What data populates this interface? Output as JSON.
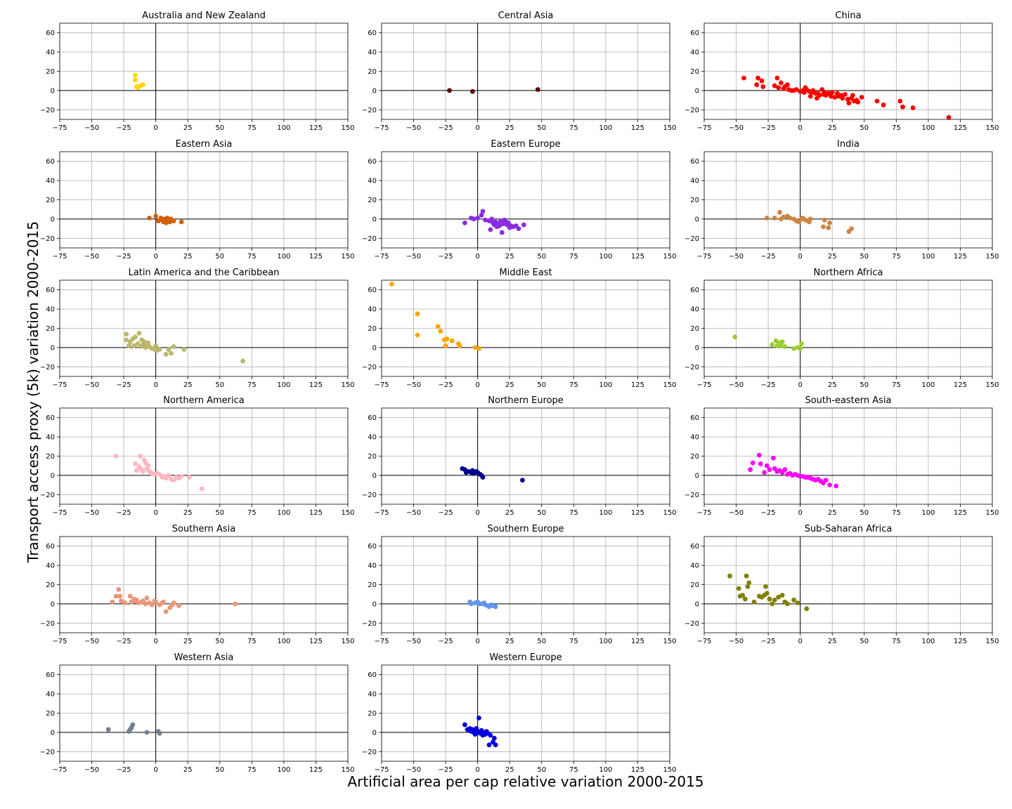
{
  "figure": {
    "xlabel": "Artificial area per cap relative variation 2000-2015",
    "ylabel": "Transport access proxy (5k) variation 2000-2015"
  },
  "chart_data": [
    {
      "type": "scatter",
      "title": "Australia and New Zealand",
      "color": "#ffd700",
      "xlim": [
        -75,
        150
      ],
      "ylim": [
        -30,
        70
      ],
      "xticks": [
        -75,
        -50,
        -25,
        0,
        25,
        50,
        75,
        100,
        125,
        150
      ],
      "yticks": [
        -20,
        0,
        20,
        40,
        60
      ],
      "grid": true,
      "x": [
        -16,
        -16,
        -15,
        -14,
        -12,
        -10
      ],
      "y": [
        16,
        11,
        4,
        3,
        5,
        6
      ]
    },
    {
      "type": "scatter",
      "title": "Central Asia",
      "color": "#5c0000",
      "xlim": [
        -75,
        150
      ],
      "ylim": [
        -30,
        70
      ],
      "xticks": [
        -75,
        -50,
        -25,
        0,
        25,
        50,
        75,
        100,
        125,
        150
      ],
      "yticks": [
        -20,
        0,
        20,
        40,
        60
      ],
      "grid": true,
      "x": [
        -22,
        -4,
        47
      ],
      "y": [
        0,
        -1,
        1
      ]
    },
    {
      "type": "scatter",
      "title": "China",
      "color": "#ff0000",
      "xlim": [
        -75,
        150
      ],
      "ylim": [
        -30,
        70
      ],
      "xticks": [
        -75,
        -50,
        -25,
        0,
        25,
        50,
        75,
        100,
        125,
        150
      ],
      "yticks": [
        -20,
        0,
        20,
        40,
        60
      ],
      "grid": true,
      "x": [
        -44,
        -33,
        -34,
        -30,
        -29,
        -20,
        -18,
        -15,
        -13,
        -10,
        -9,
        -5,
        -3,
        0,
        2,
        4,
        5,
        7,
        9,
        10,
        12,
        13,
        15,
        17,
        18,
        20,
        22,
        25,
        27,
        30,
        32,
        35,
        38,
        40,
        42,
        45,
        48,
        60,
        65,
        78,
        80,
        88,
        116,
        -17,
        -12,
        -7,
        3,
        8,
        14,
        19,
        24,
        29,
        33,
        37,
        41,
        44
      ],
      "y": [
        13,
        13,
        6,
        10,
        4,
        5,
        13,
        8,
        2,
        6,
        1,
        0,
        1,
        -1,
        0,
        3,
        1,
        -1,
        -2,
        0,
        -3,
        -8,
        -5,
        1,
        -4,
        -5,
        -3,
        -2,
        -7,
        -6,
        -5,
        -4,
        -13,
        -8,
        -11,
        -12,
        -7,
        -11,
        -15,
        -11,
        -17,
        -18,
        -28,
        3,
        4,
        0,
        -2,
        -6,
        -3,
        -2,
        -6,
        -3,
        -8,
        -9,
        -5,
        -10
      ]
    },
    {
      "type": "scatter",
      "title": "Eastern Asia",
      "color": "#d2600a",
      "xlim": [
        -75,
        150
      ],
      "ylim": [
        -30,
        70
      ],
      "xticks": [
        -75,
        -50,
        -25,
        0,
        25,
        50,
        75,
        100,
        125,
        150
      ],
      "yticks": [
        -20,
        0,
        20,
        40,
        60
      ],
      "grid": true,
      "x": [
        -5,
        0,
        2,
        4,
        5,
        6,
        7,
        8,
        9,
        10,
        11,
        12,
        14,
        20
      ],
      "y": [
        1,
        3,
        -2,
        1,
        -1,
        -3,
        0,
        -4,
        1,
        -2,
        -3,
        0,
        -2,
        -3
      ]
    },
    {
      "type": "scatter",
      "title": "Eastern Europe",
      "color": "#8a2be2",
      "xlim": [
        -75,
        150
      ],
      "ylim": [
        -30,
        70
      ],
      "xticks": [
        -75,
        -50,
        -25,
        0,
        25,
        50,
        75,
        100,
        125,
        150
      ],
      "yticks": [
        -20,
        0,
        20,
        40,
        60
      ],
      "grid": true,
      "x": [
        -10,
        -5,
        -3,
        0,
        3,
        4,
        6,
        9,
        10,
        11,
        12,
        13,
        14,
        15,
        16,
        17,
        18,
        19,
        20,
        21,
        22,
        23,
        24,
        25,
        26,
        28,
        30,
        32,
        36
      ],
      "y": [
        -4,
        1,
        0,
        1,
        4,
        8,
        -1,
        -2,
        -11,
        0,
        -4,
        -6,
        -3,
        -8,
        -5,
        -7,
        -2,
        -14,
        -5,
        -1,
        -3,
        -6,
        -4,
        -9,
        -7,
        -8,
        -7,
        -10,
        -6
      ]
    },
    {
      "type": "scatter",
      "title": "India",
      "color": "#cd853f",
      "xlim": [
        -75,
        150
      ],
      "ylim": [
        -30,
        70
      ],
      "xticks": [
        -75,
        -50,
        -25,
        0,
        25,
        50,
        75,
        100,
        125,
        150
      ],
      "yticks": [
        -20,
        0,
        20,
        40,
        60
      ],
      "grid": true,
      "x": [
        -26,
        -20,
        -16,
        -15,
        -13,
        -10,
        -8,
        -5,
        -3,
        -1,
        1,
        2,
        4,
        6,
        7,
        8,
        18,
        19,
        22,
        23,
        38,
        40
      ],
      "y": [
        1,
        1,
        7,
        0,
        2,
        3,
        1,
        0,
        -2,
        -3,
        0,
        1,
        -1,
        -2,
        -3,
        0,
        -8,
        -1,
        -9,
        -4,
        -13,
        -10
      ]
    },
    {
      "type": "scatter",
      "title": "Latin America and the Caribbean",
      "color": "#bdb76b",
      "xlim": [
        -75,
        150
      ],
      "ylim": [
        -30,
        70
      ],
      "xticks": [
        -75,
        -50,
        -25,
        0,
        25,
        50,
        75,
        100,
        125,
        150
      ],
      "yticks": [
        -20,
        0,
        20,
        40,
        60
      ],
      "grid": true,
      "x": [
        -23,
        -23,
        -21,
        -20,
        -18,
        -17,
        -16,
        -14,
        -13,
        -12,
        -11,
        -10,
        -9,
        -8,
        -7,
        -6,
        -5,
        -3,
        -1,
        0,
        1,
        3,
        8,
        10,
        12,
        14,
        22,
        68
      ],
      "y": [
        14,
        8,
        2,
        6,
        9,
        2,
        11,
        4,
        15,
        1,
        8,
        3,
        6,
        0,
        2,
        5,
        1,
        -1,
        -2,
        2,
        -3,
        -2,
        -7,
        -2,
        -6,
        1,
        -2,
        -14
      ]
    },
    {
      "type": "scatter",
      "title": "Middle East",
      "color": "#ffa500",
      "xlim": [
        -75,
        150
      ],
      "ylim": [
        -30,
        70
      ],
      "xticks": [
        -75,
        -50,
        -25,
        0,
        25,
        50,
        75,
        100,
        125,
        150
      ],
      "yticks": [
        -20,
        0,
        20,
        40,
        60
      ],
      "grid": true,
      "x": [
        -67,
        -47,
        -47,
        -31,
        -29,
        -26,
        -25,
        -24,
        -20,
        -15,
        -14,
        -2,
        1
      ],
      "y": [
        66,
        35,
        13,
        22,
        17,
        8,
        2,
        9,
        7,
        4,
        2,
        0,
        -1
      ]
    },
    {
      "type": "scatter",
      "title": "Northern Africa",
      "color": "#9acd32",
      "xlim": [
        -75,
        150
      ],
      "ylim": [
        -30,
        70
      ],
      "xticks": [
        -75,
        -50,
        -25,
        0,
        25,
        50,
        75,
        100,
        125,
        150
      ],
      "yticks": [
        -20,
        0,
        20,
        40,
        60
      ],
      "grid": true,
      "x": [
        -51,
        -22,
        -19,
        -18,
        -16,
        -14,
        -12,
        -5,
        -2,
        0,
        1,
        -15
      ],
      "y": [
        11,
        3,
        7,
        2,
        5,
        6,
        1,
        -1,
        0,
        -1,
        4,
        2
      ]
    },
    {
      "type": "scatter",
      "title": "Northern America",
      "color": "#ffb6c1",
      "xlim": [
        -75,
        150
      ],
      "ylim": [
        -30,
        70
      ],
      "xticks": [
        -75,
        -50,
        -25,
        0,
        25,
        50,
        75,
        100,
        125,
        150
      ],
      "yticks": [
        -20,
        0,
        20,
        40,
        60
      ],
      "grid": true,
      "x": [
        -31,
        -16,
        -15,
        -13,
        -12,
        -11,
        -10,
        -9,
        -8,
        -7,
        -6,
        -5,
        -4,
        -3,
        -1,
        1,
        3,
        5,
        7,
        8,
        10,
        12,
        14,
        16,
        18,
        20,
        26,
        36
      ],
      "y": [
        20,
        12,
        5,
        9,
        20,
        6,
        4,
        16,
        13,
        7,
        10,
        4,
        3,
        2,
        1,
        2,
        1,
        -2,
        -1,
        -3,
        0,
        -4,
        -5,
        -2,
        -3,
        -1,
        -2,
        -14
      ]
    },
    {
      "type": "scatter",
      "title": "Northern Europe",
      "color": "#00008b",
      "xlim": [
        -75,
        150
      ],
      "ylim": [
        -30,
        70
      ],
      "xticks": [
        -75,
        -50,
        -25,
        0,
        25,
        50,
        75,
        100,
        125,
        150
      ],
      "yticks": [
        -20,
        0,
        20,
        40,
        60
      ],
      "grid": true,
      "x": [
        -12,
        -10,
        -9,
        -7,
        -5,
        -4,
        -3,
        -1,
        0,
        2,
        3,
        4,
        35
      ],
      "y": [
        7,
        6,
        3,
        4,
        3,
        5,
        2,
        4,
        3,
        1,
        0,
        -2,
        -5
      ]
    },
    {
      "type": "scatter",
      "title": "South-eastern Asia",
      "color": "#ff00ff",
      "xlim": [
        -75,
        150
      ],
      "ylim": [
        -30,
        70
      ],
      "xticks": [
        -75,
        -50,
        -25,
        0,
        25,
        50,
        75,
        100,
        125,
        150
      ],
      "yticks": [
        -20,
        0,
        20,
        40,
        60
      ],
      "grid": true,
      "x": [
        -39,
        -37,
        -32,
        -31,
        -28,
        -26,
        -24,
        -21,
        -20,
        -18,
        -16,
        -14,
        -12,
        -10,
        -8,
        -6,
        -4,
        -2,
        0,
        2,
        4,
        6,
        8,
        10,
        12,
        14,
        16,
        18,
        20,
        23,
        28
      ],
      "y": [
        6,
        13,
        21,
        12,
        3,
        10,
        6,
        18,
        7,
        4,
        5,
        3,
        6,
        1,
        2,
        0,
        1,
        0,
        -1,
        -1,
        -2,
        -2,
        -3,
        -4,
        -5,
        -4,
        -6,
        -8,
        -5,
        -10,
        -11
      ]
    },
    {
      "type": "scatter",
      "title": "Southern Asia",
      "color": "#e9967a",
      "xlim": [
        -75,
        150
      ],
      "ylim": [
        -30,
        70
      ],
      "xticks": [
        -75,
        -50,
        -25,
        0,
        25,
        50,
        75,
        100,
        125,
        150
      ],
      "yticks": [
        -20,
        0,
        20,
        40,
        60
      ],
      "grid": true,
      "x": [
        -34,
        -31,
        -29,
        -28,
        -27,
        -24,
        -20,
        -19,
        -17,
        -16,
        -15,
        -13,
        -11,
        -10,
        -8,
        -7,
        -5,
        -3,
        -1,
        0,
        3,
        5,
        6,
        8,
        11,
        13,
        14,
        18,
        62
      ],
      "y": [
        2,
        8,
        15,
        8,
        3,
        1,
        8,
        2,
        5,
        3,
        4,
        1,
        2,
        3,
        0,
        6,
        1,
        -1,
        3,
        2,
        -1,
        1,
        2,
        -8,
        -4,
        -1,
        1,
        -2,
        0
      ]
    },
    {
      "type": "scatter",
      "title": "Southern Europe",
      "color": "#6495ed",
      "xlim": [
        -75,
        150
      ],
      "ylim": [
        -30,
        70
      ],
      "xticks": [
        -75,
        -50,
        -25,
        0,
        25,
        50,
        75,
        100,
        125,
        150
      ],
      "yticks": [
        -20,
        0,
        20,
        40,
        60
      ],
      "grid": true,
      "x": [
        -6,
        -5,
        -2,
        0,
        1,
        3,
        5,
        6,
        8,
        9,
        11,
        12,
        14
      ],
      "y": [
        2,
        0,
        1,
        2,
        0,
        0,
        1,
        -1,
        -2,
        -3,
        -1,
        -2,
        -3
      ]
    },
    {
      "type": "scatter",
      "title": "Sub-Saharan Africa",
      "color": "#808000",
      "xlim": [
        -75,
        150
      ],
      "ylim": [
        -30,
        70
      ],
      "xticks": [
        -75,
        -50,
        -25,
        0,
        25,
        50,
        75,
        100,
        125,
        150
      ],
      "yticks": [
        -20,
        0,
        20,
        40,
        60
      ],
      "grid": true,
      "x": [
        -55,
        -48,
        -47,
        -45,
        -43,
        -42,
        -41,
        -40,
        -36,
        -32,
        -30,
        -28,
        -27,
        -26,
        -24,
        -22,
        -20,
        -17,
        -14,
        -12,
        -10,
        -5,
        -2,
        5
      ],
      "y": [
        29,
        16,
        8,
        9,
        5,
        29,
        18,
        22,
        2,
        8,
        7,
        9,
        18,
        11,
        5,
        0,
        4,
        7,
        9,
        2,
        0,
        4,
        1,
        -5
      ]
    },
    {
      "type": "scatter",
      "title": "Western Asia",
      "color": "#708090",
      "xlim": [
        -75,
        150
      ],
      "ylim": [
        -30,
        70
      ],
      "xticks": [
        -75,
        -50,
        -25,
        0,
        25,
        50,
        75,
        100,
        125,
        150
      ],
      "yticks": [
        -20,
        0,
        20,
        40,
        60
      ],
      "grid": true,
      "x": [
        -37,
        -21,
        -20,
        -19,
        -18,
        -7,
        2,
        3
      ],
      "y": [
        3,
        1,
        3,
        5,
        8,
        0,
        1,
        -1
      ]
    },
    {
      "type": "scatter",
      "title": "Western Europe",
      "color": "#0000dd",
      "xlim": [
        -75,
        150
      ],
      "ylim": [
        -30,
        70
      ],
      "xticks": [
        -75,
        -50,
        -25,
        0,
        25,
        50,
        75,
        100,
        125,
        150
      ],
      "yticks": [
        -20,
        0,
        20,
        40,
        60
      ],
      "grid": true,
      "x": [
        -10,
        -8,
        -7,
        -6,
        -5,
        -4,
        -3,
        -2,
        -1,
        0,
        1,
        2,
        3,
        4,
        5,
        6,
        7,
        8,
        9,
        10,
        12,
        13,
        14
      ],
      "y": [
        8,
        3,
        2,
        4,
        1,
        3,
        0,
        -2,
        4,
        1,
        15,
        -1,
        2,
        -3,
        0,
        -2,
        1,
        -1,
        -13,
        -3,
        -10,
        -6,
        -13
      ]
    }
  ]
}
